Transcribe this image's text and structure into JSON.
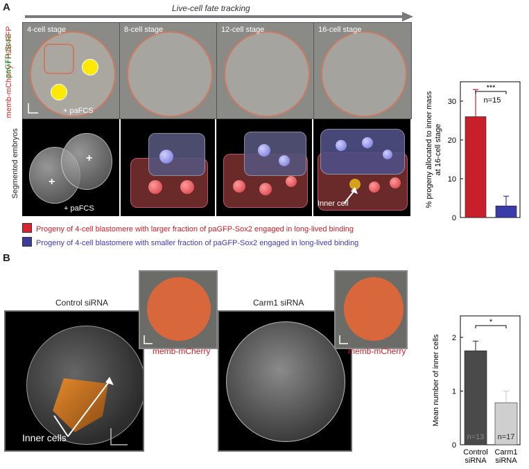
{
  "panel_a": {
    "letter": "A",
    "arrow_title": "Live-cell fate tracking",
    "stages": [
      "4-cell stage",
      "8-cell stage",
      "12-cell stage",
      "16-cell stage"
    ],
    "side_label_red": "memb-mCherry",
    "side_label_sep": " / ",
    "side_label_h2b": "H2B-RFP",
    "side_label_green": "paGFP-Sox2",
    "pafcs_label": "+ paFCS",
    "pafcs_label_seg": "+ paFCS",
    "segmented_label": "Segmented embryos",
    "inner_cell_label": "Inner cell",
    "legend": [
      {
        "color": "#d9232e",
        "text": "Progeny of 4-cell blastomere with larger fraction of paGFP-Sox2 engaged in long-lived binding"
      },
      {
        "color": "#3b3b9a",
        "text": "Progeny of 4-cell blastomere with smaller fraction of paGFP-Sox2 engaged in long-lived binding"
      }
    ]
  },
  "panel_b": {
    "letter": "B",
    "control_title": "Control siRNA",
    "carm1_title": "Carm1 siRNA",
    "inset_label_1": "memb-mCherry",
    "inset_label_2": "memb-mCherry",
    "inner_cells_label": "Inner cells"
  },
  "chart_data": [
    {
      "type": "bar",
      "categories": [
        "",
        ""
      ],
      "values": [
        26,
        3
      ],
      "errors": [
        7,
        2.5
      ],
      "colors": [
        "#c8202a",
        "#3a3aa8"
      ],
      "ylabel": "% progeny allocated to inner mass at 16-cell stage",
      "ylim": [
        0,
        35
      ],
      "yticks": [
        0,
        10,
        20,
        30
      ],
      "annotations": [
        "***",
        "n=15"
      ]
    },
    {
      "type": "bar",
      "categories": [
        "Control siRNA",
        "Carm1 siRNA"
      ],
      "values": [
        1.75,
        0.78
      ],
      "errors": [
        0.18,
        0.22
      ],
      "colors": [
        "#4a4a4a",
        "#cfcfcf"
      ],
      "bar_labels": [
        "n=13",
        "n=17"
      ],
      "ylabel": "Mean number of inner cells",
      "ylim": [
        0,
        2.4
      ],
      "yticks": [
        0,
        1,
        2
      ],
      "annotations": [
        "*"
      ]
    }
  ]
}
